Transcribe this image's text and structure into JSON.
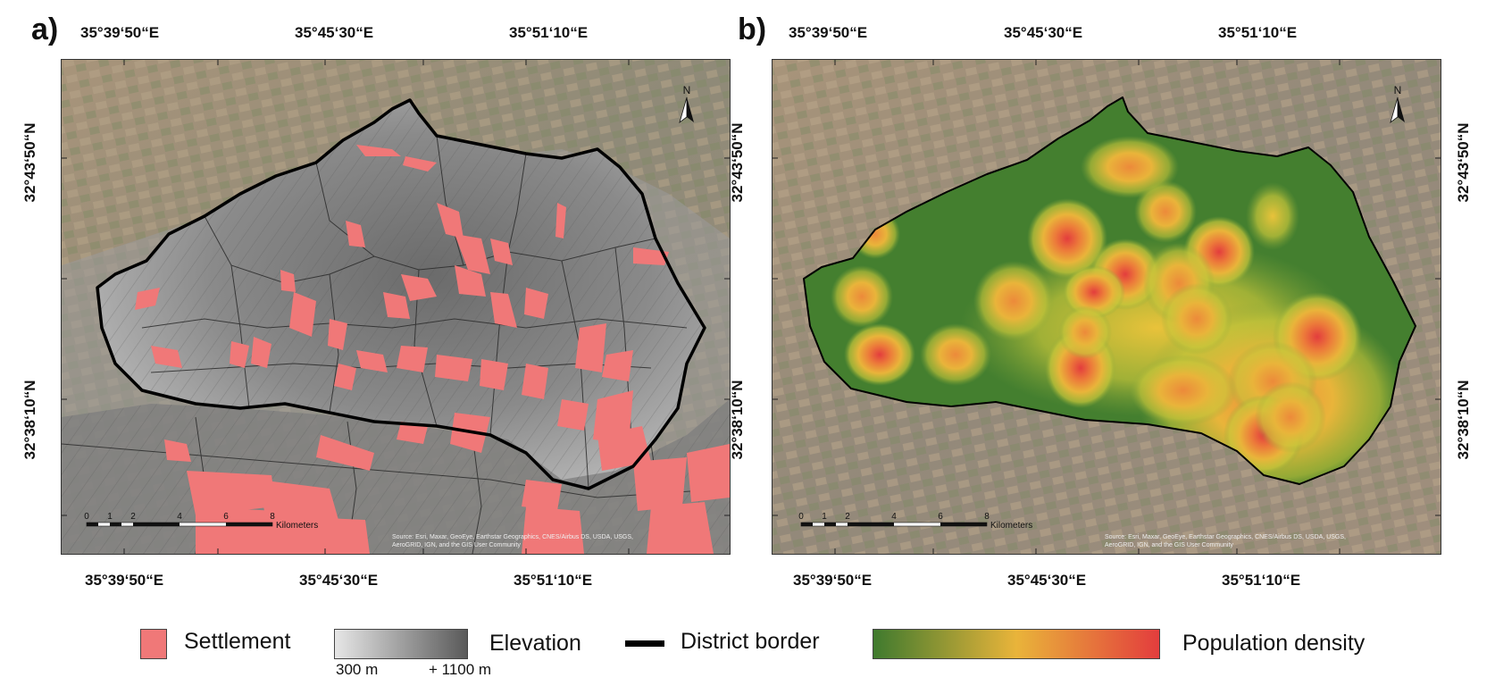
{
  "panels": {
    "a": {
      "letter": "a)",
      "top_ticks": [
        "35°39‘50“E",
        "35°45‘30“E",
        "35°51‘10“E"
      ],
      "bottom_ticks": [
        "35°39‘50“E",
        "35°45‘30“E",
        "35°51‘10“E"
      ],
      "left_ticks": [
        "32°43‘50“N",
        "32°38‘10“N"
      ],
      "scale_labels": [
        "0",
        "1",
        "2",
        "4",
        "6",
        "8"
      ],
      "scale_unit": "Kilometers",
      "north_label": "N",
      "attribution_line1": "Source: Esri, Maxar, GeoEye, Earthstar Geographics, CNES/Airbus DS, USDA, USGS,",
      "attribution_line2": "AeroGRID, IGN, and the GIS User Community"
    },
    "b": {
      "letter": "b)",
      "top_ticks": [
        "35°39‘50“E",
        "35°45‘30“E",
        "35°51‘10“E"
      ],
      "bottom_ticks": [
        "35°39‘50“E",
        "35°45‘30“E",
        "35°51‘10“E"
      ],
      "left_ticks": [
        "32°43‘50“N",
        "32°38‘10“N"
      ],
      "right_ticks": [
        "32°43‘50“N",
        "32°38‘10“N"
      ],
      "scale_labels": [
        "0",
        "1",
        "2",
        "4",
        "6",
        "8"
      ],
      "scale_unit": "Kilometers",
      "north_label": "N",
      "attribution_line1": "Source: Esri, Maxar, GeoEye, Earthstar Geographics, CNES/Airbus DS, USDA, USGS,",
      "attribution_line2": "AeroGRID, IGN, and the GIS User Community"
    }
  },
  "legend": {
    "settlement": {
      "label": "Settlement",
      "color": "#f07878"
    },
    "elevation": {
      "label": "Elevation",
      "min_label": "300 m",
      "max_label": "+ 1100 m",
      "color_low": "#e6e6e6",
      "color_high": "#5a5a5a"
    },
    "district_border": {
      "label": "District border",
      "color": "#000000"
    },
    "population_density": {
      "label": "Population density",
      "color_low": "#3f7a2e",
      "color_mid": "#e9b43a",
      "color_high": "#e33d3d"
    }
  }
}
